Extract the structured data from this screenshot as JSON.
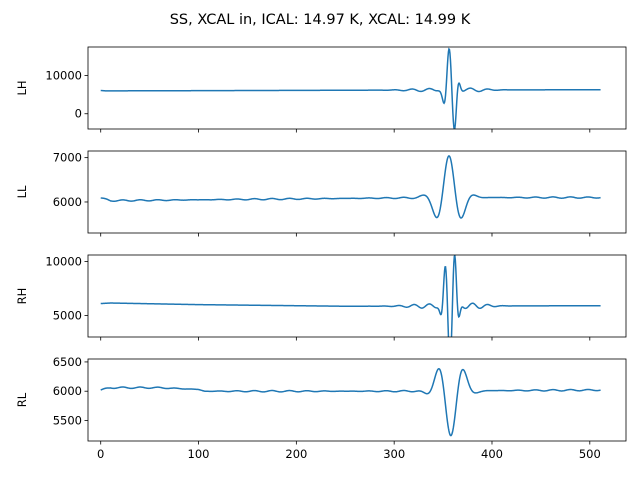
{
  "chart_data": {
    "type": "line",
    "title": "SS, XCAL in, ICAL: 14.97 K, XCAL: 14.99 K",
    "xlim": [
      -13,
      537
    ],
    "xticks": [
      0,
      100,
      200,
      300,
      400,
      500
    ],
    "series_color": "#1f77b4",
    "panels": [
      {
        "ylabel": "LH",
        "ylim": [
          -4000,
          17500
        ],
        "yticks": [
          0,
          10000
        ],
        "baseline": [
          [
            0,
            6100
          ],
          [
            5,
            6000
          ],
          [
            100,
            6050
          ],
          [
            300,
            6200
          ],
          [
            508,
            6300
          ]
        ],
        "events": [
          {
            "x": 336,
            "amp": 400,
            "width": 20,
            "freq": 0.35
          },
          {
            "x": 352,
            "amp": 900,
            "width": 4,
            "freq": 0.6
          },
          {
            "x": 356,
            "amp": 10000,
            "width": 4,
            "freq": 0.55
          },
          {
            "x": 362,
            "amp": -7000,
            "width": 3,
            "freq": 0.55
          },
          {
            "x": 378,
            "amp": 500,
            "width": 15,
            "freq": 0.35
          }
        ]
      },
      {
        "ylabel": "LL",
        "ylim": [
          5300,
          7150
        ],
        "yticks": [
          6000,
          7000
        ],
        "baseline": [
          [
            0,
            6090
          ],
          [
            10,
            6030
          ],
          [
            60,
            6040
          ],
          [
            150,
            6060
          ],
          [
            250,
            6080
          ],
          [
            350,
            6100
          ],
          [
            508,
            6100
          ]
        ],
        "events": [
          {
            "x": 356,
            "amp": 950,
            "width": 11,
            "freq": 0.22
          }
        ],
        "wiggle": 15
      },
      {
        "ylabel": "RH",
        "ylim": [
          3000,
          10600
        ],
        "yticks": [
          5000,
          10000
        ],
        "baseline": [
          [
            0,
            6100
          ],
          [
            10,
            6150
          ],
          [
            100,
            6000
          ],
          [
            250,
            5850
          ],
          [
            508,
            5900
          ]
        ],
        "events": [
          {
            "x": 336,
            "amp": 200,
            "width": 20,
            "freq": 0.4
          },
          {
            "x": 352,
            "amp": 2600,
            "width": 3,
            "freq": 0.6
          },
          {
            "x": 357,
            "amp": -3500,
            "width": 3,
            "freq": 0.6
          },
          {
            "x": 362,
            "amp": 3800,
            "width": 3,
            "freq": 0.6
          },
          {
            "x": 380,
            "amp": 250,
            "width": 14,
            "freq": 0.4
          }
        ]
      },
      {
        "ylabel": "RL",
        "ylim": [
          5150,
          6550
        ],
        "yticks": [
          5500,
          6000,
          6500
        ],
        "baseline": [
          [
            0,
            6020
          ],
          [
            10,
            6060
          ],
          [
            60,
            6060
          ],
          [
            100,
            6030
          ],
          [
            106,
            6000
          ],
          [
            200,
            6000
          ],
          [
            300,
            6000
          ],
          [
            508,
            6020
          ]
        ],
        "events": [
          {
            "x": 358,
            "amp": -760,
            "width": 11,
            "freq": 0.22
          }
        ],
        "wiggle": 12
      }
    ]
  }
}
